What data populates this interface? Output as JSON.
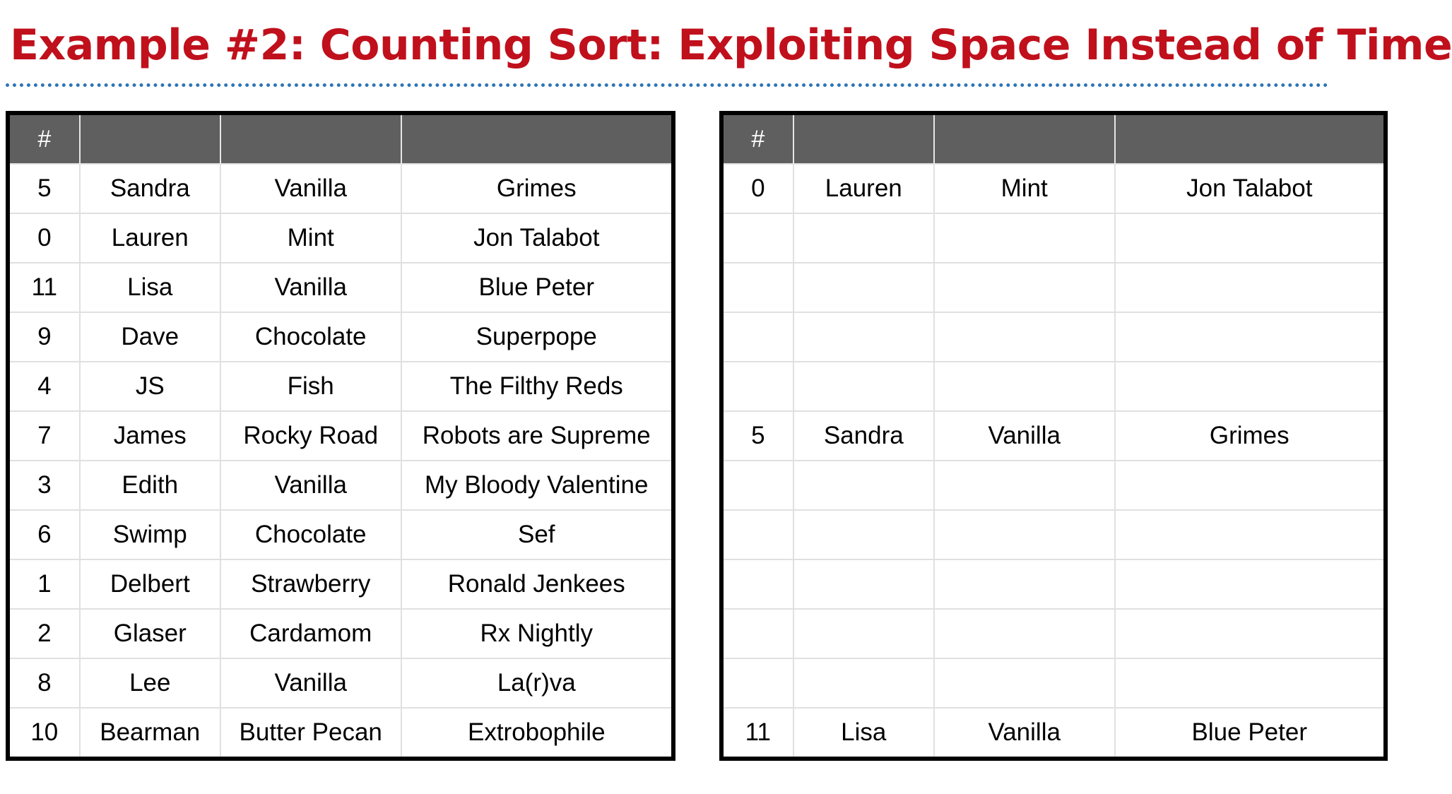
{
  "title": "Example #2: Counting Sort: Exploiting Space Instead of Time",
  "input_table": {
    "headers": [
      "#",
      "",
      "",
      ""
    ],
    "rows": [
      [
        "5",
        "Sandra",
        "Vanilla",
        "Grimes"
      ],
      [
        "0",
        "Lauren",
        "Mint",
        "Jon Talabot"
      ],
      [
        "11",
        "Lisa",
        "Vanilla",
        "Blue Peter"
      ],
      [
        "9",
        "Dave",
        "Chocolate",
        "Superpope"
      ],
      [
        "4",
        "JS",
        "Fish",
        "The Filthy Reds"
      ],
      [
        "7",
        "James",
        "Rocky Road",
        "Robots are Supreme"
      ],
      [
        "3",
        "Edith",
        "Vanilla",
        "My Bloody Valentine"
      ],
      [
        "6",
        "Swimp",
        "Chocolate",
        "Sef"
      ],
      [
        "1",
        "Delbert",
        "Strawberry",
        "Ronald Jenkees"
      ],
      [
        "2",
        "Glaser",
        "Cardamom",
        "Rx Nightly"
      ],
      [
        "8",
        "Lee",
        "Vanilla",
        "La(r)va"
      ],
      [
        "10",
        "Bearman",
        "Butter Pecan",
        "Extrobophile"
      ]
    ]
  },
  "output_table": {
    "headers": [
      "#",
      "",
      "",
      ""
    ],
    "rows": [
      [
        "0",
        "Lauren",
        "Mint",
        "Jon Talabot"
      ],
      [
        "",
        "",
        "",
        ""
      ],
      [
        "",
        "",
        "",
        ""
      ],
      [
        "",
        "",
        "",
        ""
      ],
      [
        "",
        "",
        "",
        ""
      ],
      [
        "5",
        "Sandra",
        "Vanilla",
        "Grimes"
      ],
      [
        "",
        "",
        "",
        ""
      ],
      [
        "",
        "",
        "",
        ""
      ],
      [
        "",
        "",
        "",
        ""
      ],
      [
        "",
        "",
        "",
        ""
      ],
      [
        "",
        "",
        "",
        ""
      ],
      [
        "11",
        "Lisa",
        "Vanilla",
        "Blue Peter"
      ]
    ]
  }
}
